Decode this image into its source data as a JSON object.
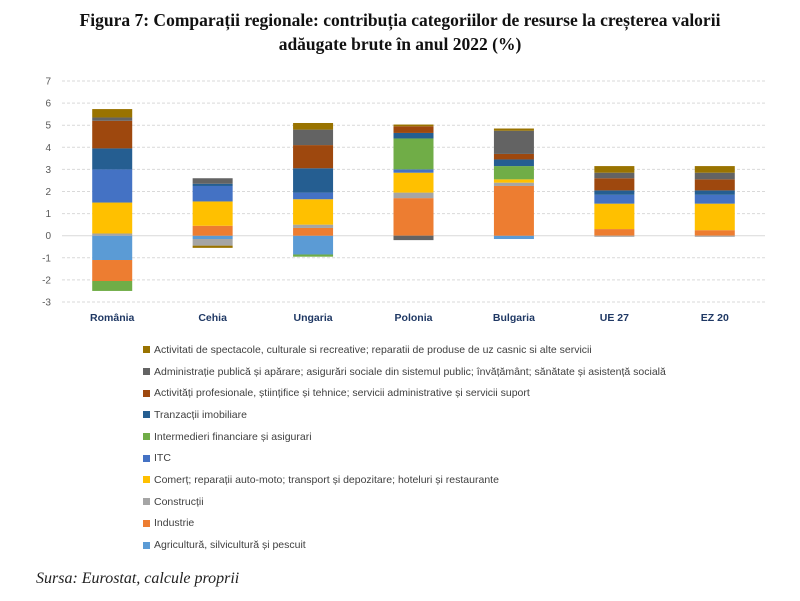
{
  "title": {
    "line1": "Figura 7: Comparații regionale: contribuția categoriilor de resurse la creșterea valorii",
    "line2": "adăugate brute în anul 2022 (%)"
  },
  "source": "Sursa: Eurostat, calcule proprii",
  "chart_data": {
    "type": "bar",
    "stacked": true,
    "title": "Figura 7: Comparații regionale: contribuția categoriilor de resurse la creșterea valorii adăugate brute în anul 2022 (%)",
    "xlabel": "",
    "ylabel": "",
    "ylim": [
      -3,
      7
    ],
    "yticks": [
      7,
      6,
      5,
      4,
      3,
      2,
      1,
      0,
      -1,
      -2,
      -3
    ],
    "grid": true,
    "legend_position": "bottom",
    "categories": [
      "România",
      "Cehia",
      "Ungaria",
      "Polonia",
      "Bulgaria",
      "UE 27",
      "EZ 20"
    ],
    "series": [
      {
        "name": "Agricultură, silvicultură și pescuit",
        "color": "#5b9bd5",
        "values": [
          -1.1,
          -0.15,
          -0.85,
          0.0,
          -0.15,
          0.0,
          0.0
        ]
      },
      {
        "name": "Industrie",
        "color": "#ed7d31",
        "values": [
          -0.95,
          0.45,
          0.35,
          1.7,
          2.25,
          0.3,
          0.25
        ]
      },
      {
        "name": "Construcții",
        "color": "#a5a5a5",
        "values": [
          0.1,
          -0.3,
          0.15,
          0.25,
          0.15,
          -0.05,
          -0.05
        ]
      },
      {
        "name": "Comerț; reparații auto-moto; transport și depozitare; hoteluri și restaurante",
        "color": "#ffc000",
        "values": [
          1.4,
          1.1,
          1.15,
          0.9,
          0.15,
          1.15,
          1.2
        ]
      },
      {
        "name": "ITC",
        "color": "#4472c4",
        "values": [
          1.5,
          0.7,
          0.3,
          0.15,
          0.0,
          0.4,
          0.4
        ]
      },
      {
        "name": "Intermedieri financiare și asigurari",
        "color": "#70ad47",
        "values": [
          -0.45,
          0.0,
          -0.1,
          1.4,
          0.6,
          0.0,
          0.0
        ]
      },
      {
        "name": "Tranzacții imobiliare",
        "color": "#255e91",
        "values": [
          0.95,
          0.1,
          1.1,
          0.25,
          0.3,
          0.2,
          0.2
        ]
      },
      {
        "name": "Activități profesionale, științifice și tehnice; servicii administrative și servicii suport",
        "color": "#9e480e",
        "values": [
          1.25,
          0.0,
          1.05,
          0.3,
          0.25,
          0.55,
          0.5
        ]
      },
      {
        "name": "Administrație publică și apărare; asigurări sociale din sistemul public; învățământ; sănătate și asistență socială",
        "color": "#636363",
        "values": [
          0.15,
          0.25,
          0.7,
          -0.2,
          1.05,
          0.25,
          0.3
        ]
      },
      {
        "name": "Activitati de spectacole, culturale si recreative; reparatii de produse de uz casnic si alte servicii",
        "color": "#997300",
        "values": [
          0.38,
          -0.1,
          0.3,
          0.08,
          0.1,
          0.3,
          0.3
        ]
      }
    ]
  }
}
